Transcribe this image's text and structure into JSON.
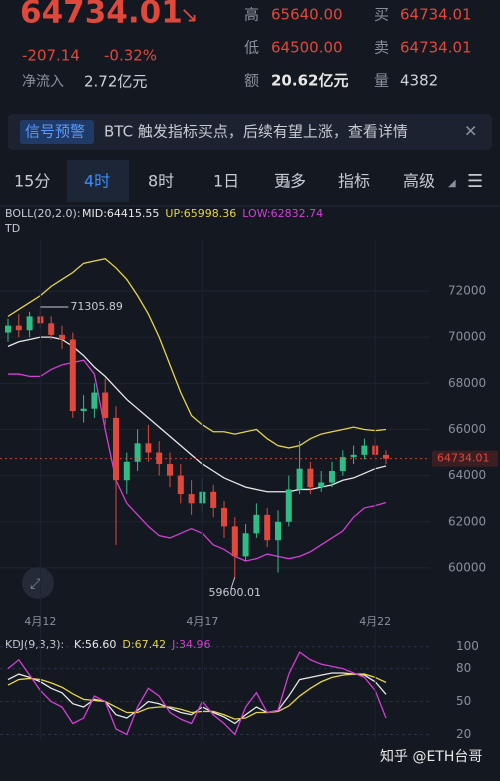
{
  "header": {
    "price": "64734.01",
    "change": "-207.14",
    "change_pct": "-0.32%",
    "net_inflow_label": "净流入",
    "net_inflow": "2.72亿元",
    "stats": [
      {
        "label": "高",
        "value": "65640.00"
      },
      {
        "label": "低",
        "value": "64500.00"
      },
      {
        "label": "额",
        "value": "20.62亿元"
      },
      {
        "label": "买",
        "value": "64734.01"
      },
      {
        "label": "卖",
        "value": "64734.01"
      },
      {
        "label": "量",
        "value": "4382"
      }
    ]
  },
  "banner": {
    "tag": "信号预警",
    "text": "BTC 触发指标买点，后续有望上涨，查看详情"
  },
  "tabs": [
    "15分",
    "4时",
    "8时",
    "1日",
    "更多",
    "指标",
    "高级"
  ],
  "watermark": "知乎 @ETH台哥",
  "chart_data": [
    {
      "type": "candlestick",
      "title": "BOLL(20,2.0):",
      "subtitle": "TD",
      "categories": [
        null,
        null,
        null,
        "4月12",
        null,
        null,
        null,
        null,
        null,
        null,
        null,
        null,
        null,
        null,
        null,
        null,
        null,
        null,
        "4月17",
        null,
        null,
        null,
        null,
        null,
        null,
        null,
        null,
        null,
        null,
        null,
        null,
        null,
        null,
        null,
        "4月22",
        null
      ],
      "open": [
        70200,
        70500,
        70300,
        70900,
        70600,
        70100,
        69900,
        66800,
        66900,
        67600,
        66500,
        63800,
        64600,
        65400,
        65000,
        64500,
        64000,
        63200,
        62800,
        63300,
        62600,
        61800,
        60500,
        61500,
        62300,
        61200,
        62000,
        63400,
        64300,
        63500,
        63700,
        64200,
        64800,
        64900,
        65300,
        64900
      ],
      "high": [
        70800,
        71000,
        71100,
        71305.89,
        70900,
        70500,
        70200,
        67500,
        68000,
        68200,
        67000,
        65000,
        66000,
        66200,
        65500,
        65000,
        64500,
        63800,
        63900,
        63600,
        62900,
        62200,
        61900,
        62800,
        62600,
        62500,
        64000,
        65500,
        64600,
        64200,
        64600,
        65100,
        65300,
        65600,
        65640,
        65100
      ],
      "low": [
        69800,
        70000,
        70000,
        70400,
        69900,
        69500,
        66500,
        66300,
        66500,
        66200,
        61000,
        63200,
        64200,
        64600,
        64000,
        63500,
        62800,
        62300,
        62400,
        62200,
        61300,
        59600.01,
        60300,
        61300,
        60900,
        59800,
        61800,
        63200,
        63200,
        63300,
        63500,
        64000,
        64500,
        64700,
        64800,
        64500
      ],
      "close": [
        70500,
        70300,
        70900,
        70600,
        70100,
        69900,
        66800,
        66900,
        67600,
        66500,
        63800,
        64600,
        65400,
        65000,
        64500,
        64000,
        63200,
        62800,
        63300,
        62600,
        61800,
        60500,
        61500,
        62300,
        61200,
        62000,
        63400,
        64300,
        63500,
        63700,
        64200,
        64800,
        64900,
        65300,
        64900,
        64734.01
      ],
      "up_color": "#2ebd85",
      "down_color": "#e0483c",
      "series": [
        {
          "name": "MID:64415.55",
          "color": "#e8e8e8",
          "values": [
            69600,
            69800,
            69900,
            70000,
            70000,
            69900,
            69600,
            69200,
            68700,
            68300,
            67800,
            67300,
            66900,
            66500,
            66100,
            65700,
            65300,
            64900,
            64500,
            64200,
            63900,
            63700,
            63500,
            63400,
            63300,
            63300,
            63300,
            63400,
            63400,
            63500,
            63600,
            63800,
            63900,
            64100,
            64300,
            64415.55
          ]
        },
        {
          "name": "UP:65998.36",
          "color": "#e6d44a",
          "values": [
            70900,
            71200,
            71500,
            71800,
            72200,
            72500,
            72800,
            73200,
            73300,
            73400,
            73000,
            72500,
            71800,
            71000,
            70000,
            68800,
            67600,
            66600,
            66200,
            65900,
            65900,
            65800,
            65900,
            66000,
            65600,
            65300,
            65200,
            65300,
            65600,
            65800,
            65900,
            66000,
            66100,
            66000,
            65950,
            65998.36
          ]
        },
        {
          "name": "LOW:62832.74",
          "color": "#d23fd6",
          "values": [
            68400,
            68400,
            68300,
            68300,
            68600,
            68800,
            68900,
            69000,
            68400,
            66000,
            63800,
            62800,
            62300,
            61800,
            61400,
            61300,
            61500,
            61700,
            61500,
            61000,
            60800,
            60500,
            60300,
            60400,
            60600,
            60500,
            60400,
            60500,
            60700,
            61000,
            61300,
            61600,
            62200,
            62600,
            62700,
            62832.74
          ]
        }
      ],
      "ylim": [
        57960,
        74210
      ],
      "yticks": [
        60000,
        62000,
        64000,
        66000,
        68000,
        70000,
        72000
      ],
      "grid": true,
      "current_price": 64734.01,
      "current_price_color": "#e0483c"
    },
    {
      "type": "line",
      "title": "KDJ(9,3,3):",
      "series": [
        {
          "name": "K:56.60",
          "color": "#e8e8e8",
          "values": [
            70,
            75,
            72,
            68,
            62,
            58,
            48,
            45,
            52,
            50,
            38,
            35,
            42,
            50,
            48,
            44,
            40,
            38,
            45,
            40,
            36,
            30,
            38,
            45,
            40,
            42,
            55,
            70,
            72,
            74,
            76,
            76,
            75,
            74,
            68,
            56.6
          ]
        },
        {
          "name": "D:67.42",
          "color": "#e6d44a",
          "values": [
            65,
            70,
            71,
            70,
            67,
            63,
            57,
            52,
            51,
            50,
            45,
            40,
            40,
            44,
            45,
            45,
            43,
            40,
            41,
            41,
            38,
            34,
            35,
            40,
            40,
            41,
            46,
            55,
            62,
            68,
            72,
            74,
            75,
            75,
            72,
            67.42
          ]
        },
        {
          "name": "J:34.96",
          "color": "#d23fd6",
          "values": [
            80,
            88,
            74,
            60,
            50,
            45,
            30,
            35,
            55,
            50,
            25,
            20,
            45,
            62,
            55,
            40,
            34,
            30,
            50,
            38,
            30,
            20,
            45,
            58,
            40,
            42,
            75,
            95,
            88,
            84,
            82,
            80,
            76,
            72,
            60,
            34.96
          ]
        }
      ],
      "ylim": [
        15,
        106
      ],
      "yticks": [
        20,
        50,
        80,
        100
      ],
      "grid": true
    }
  ]
}
